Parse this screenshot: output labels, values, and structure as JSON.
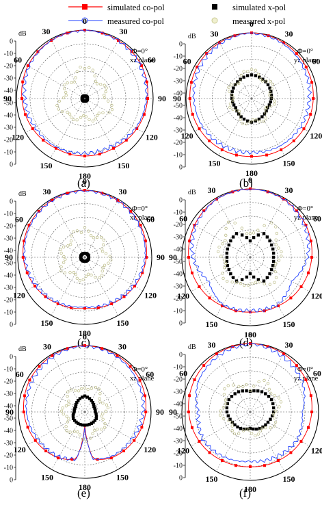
{
  "legend": {
    "entries": [
      {
        "label": "simulated co-pol",
        "color": "#ff0000",
        "marker": "filled-square",
        "line": true
      },
      {
        "label": "measured co-pol",
        "color": "#1f3fff",
        "marker": "open-circle",
        "line": true
      },
      {
        "label": "simulated x-pol",
        "color": "#000000",
        "marker": "filled-square",
        "line": false
      },
      {
        "label": "measured x-pol",
        "color": "#c8c890",
        "marker": "open-circle",
        "line": false
      }
    ]
  },
  "axis": {
    "unit": "dB",
    "radial_ticks": [
      "0",
      "-10",
      "-20",
      "-30",
      "-40",
      "-50",
      "-40",
      "-30",
      "-20",
      "-10",
      "0"
    ],
    "angle_labels": [
      "0",
      "30",
      "60",
      "90",
      "120",
      "150",
      "180",
      "150",
      "120",
      "90",
      "60",
      "30"
    ]
  },
  "panels": [
    {
      "label": "(a)",
      "phi": "Φ=0°",
      "plane": "xz plane"
    },
    {
      "label": "(b)",
      "phi": "Φ=0°",
      "plane": "yz plane"
    },
    {
      "label": "(c)",
      "phi": "Φ=0°",
      "plane": "xz plane"
    },
    {
      "label": "(d)",
      "phi": "Φ=0°",
      "plane": "yz plane"
    },
    {
      "label": "(e)",
      "phi": "Φ=0°",
      "plane": "xz plane"
    },
    {
      "label": "(f)",
      "phi": "Φ=0°",
      "plane": "yz plane"
    }
  ],
  "chart_data": [
    {
      "type": "polar",
      "title": "(a)",
      "rlim": [
        -50,
        0
      ],
      "angles_deg": [
        0,
        30,
        60,
        90,
        120,
        150,
        180,
        210,
        240,
        270,
        300,
        330
      ],
      "series": [
        {
          "name": "simulated co-pol",
          "values": [
            0,
            -1,
            -2,
            -4,
            -6,
            -8,
            -8,
            -8,
            -6,
            -4,
            -2,
            -1
          ]
        },
        {
          "name": "measured co-pol",
          "values": [
            0,
            -1,
            -3,
            -5,
            -7,
            -10,
            -10,
            -9,
            -8,
            -6,
            -3,
            -1
          ]
        },
        {
          "name": "simulated x-pol",
          "values": [
            -48,
            -48,
            -48,
            -48,
            -48,
            -48,
            -48,
            -48,
            -48,
            -48,
            -48,
            -48
          ]
        },
        {
          "name": "measured x-pol",
          "values": [
            -28,
            -33,
            -35,
            -33,
            -30,
            -35,
            -35,
            -35,
            -30,
            -33,
            -35,
            -33
          ]
        }
      ]
    },
    {
      "type": "polar",
      "title": "(b)",
      "rlim": [
        -50,
        0
      ],
      "angles_deg": [
        0,
        30,
        60,
        90,
        120,
        150,
        180,
        210,
        240,
        270,
        300,
        330
      ],
      "series": [
        {
          "name": "simulated co-pol",
          "values": [
            0,
            -1,
            -2,
            -3,
            -4,
            -5,
            -6,
            -5,
            -4,
            -3,
            -2,
            -1
          ]
        },
        {
          "name": "measured co-pol",
          "values": [
            0,
            -2,
            -4,
            -6,
            -7,
            -8,
            -9,
            -8,
            -7,
            -6,
            -4,
            -2
          ]
        },
        {
          "name": "simulated x-pol",
          "values": [
            -32,
            -33,
            -34,
            -35,
            -36,
            -34,
            -32,
            -34,
            -36,
            -35,
            -34,
            -33
          ]
        },
        {
          "name": "measured x-pol",
          "values": [
            -30,
            -32,
            -33,
            -34,
            -35,
            -33,
            -31,
            -33,
            -35,
            -34,
            -33,
            -32
          ]
        }
      ]
    },
    {
      "type": "polar",
      "title": "(c)",
      "rlim": [
        -50,
        0
      ],
      "angles_deg": [
        0,
        30,
        60,
        90,
        120,
        150,
        180,
        210,
        240,
        270,
        300,
        330
      ],
      "series": [
        {
          "name": "simulated co-pol",
          "values": [
            0,
            -1,
            -2,
            -4,
            -7,
            -10,
            -12,
            -10,
            -7,
            -4,
            -2,
            -1
          ]
        },
        {
          "name": "measured co-pol",
          "values": [
            0,
            -1,
            -3,
            -5,
            -8,
            -11,
            -13,
            -11,
            -8,
            -5,
            -3,
            -1
          ]
        },
        {
          "name": "simulated x-pol",
          "values": [
            -47,
            -47,
            -47,
            -47,
            -47,
            -47,
            -47,
            -47,
            -47,
            -47,
            -47,
            -47
          ]
        },
        {
          "name": "measured x-pol",
          "values": [
            -30,
            -32,
            -34,
            -33,
            -32,
            -34,
            -35,
            -34,
            -32,
            -33,
            -34,
            -32
          ]
        }
      ]
    },
    {
      "type": "polar",
      "title": "(d)",
      "rlim": [
        -50,
        0
      ],
      "angles_deg": [
        0,
        30,
        60,
        90,
        120,
        150,
        180,
        210,
        240,
        270,
        300,
        330
      ],
      "series": [
        {
          "name": "simulated co-pol",
          "values": [
            0,
            -1,
            -3,
            -5,
            -7,
            -9,
            -10,
            -9,
            -7,
            -5,
            -3,
            -1
          ]
        },
        {
          "name": "measured co-pol",
          "values": [
            0,
            -1,
            -4,
            -8,
            -15,
            -10,
            -11,
            -10,
            -15,
            -8,
            -4,
            -1
          ]
        },
        {
          "name": "simulated x-pol",
          "values": [
            -38,
            -30,
            -32,
            -33,
            -32,
            -30,
            -38,
            -30,
            -32,
            -33,
            -32,
            -30
          ]
        },
        {
          "name": "measured x-pol",
          "values": [
            -33,
            -22,
            -26,
            -30,
            -28,
            -26,
            -33,
            -26,
            -28,
            -30,
            -26,
            -22
          ]
        }
      ]
    },
    {
      "type": "polar",
      "title": "(e)",
      "rlim": [
        -50,
        0
      ],
      "angles_deg": [
        0,
        30,
        60,
        90,
        120,
        150,
        170,
        180,
        190,
        210,
        240,
        270,
        300,
        330
      ],
      "series": [
        {
          "name": "simulated co-pol",
          "values": [
            0,
            -1,
            -2,
            -4,
            -7,
            -10,
            -14,
            -40,
            -14,
            -10,
            -7,
            -4,
            -2,
            -1
          ]
        },
        {
          "name": "measured co-pol",
          "values": [
            0,
            -2,
            -4,
            -6,
            -9,
            -11,
            -14,
            -38,
            -14,
            -11,
            -9,
            -6,
            -4,
            -2
          ]
        },
        {
          "name": "simulated x-pol",
          "values": [
            -38,
            -40,
            -42,
            -42,
            -40,
            -40,
            -40,
            -40,
            -40,
            -40,
            -40,
            -42,
            -42,
            -40
          ]
        },
        {
          "name": "measured x-pol",
          "values": [
            -30,
            -32,
            -34,
            -35,
            -34,
            -32,
            -31,
            -30,
            -31,
            -32,
            -34,
            -35,
            -34,
            -32
          ]
        }
      ]
    },
    {
      "type": "polar",
      "title": "(f)",
      "rlim": [
        -50,
        0
      ],
      "angles_deg": [
        0,
        30,
        60,
        90,
        120,
        150,
        180,
        210,
        240,
        270,
        300,
        330
      ],
      "series": [
        {
          "name": "simulated co-pol",
          "values": [
            0,
            -1,
            -3,
            -5,
            -7,
            -9,
            -10,
            -9,
            -7,
            -5,
            -3,
            -1
          ]
        },
        {
          "name": "measured co-pol",
          "values": [
            0,
            -3,
            -6,
            -12,
            -10,
            -12,
            -14,
            -12,
            -10,
            -12,
            -6,
            -3
          ]
        },
        {
          "name": "simulated x-pol",
          "values": [
            -35,
            -33,
            -32,
            -33,
            -35,
            -36,
            -38,
            -36,
            -35,
            -33,
            -32,
            -33
          ]
        },
        {
          "name": "measured x-pol",
          "values": [
            -32,
            -26,
            -28,
            -30,
            -32,
            -33,
            -36,
            -33,
            -32,
            -30,
            -28,
            -26
          ]
        }
      ]
    }
  ]
}
